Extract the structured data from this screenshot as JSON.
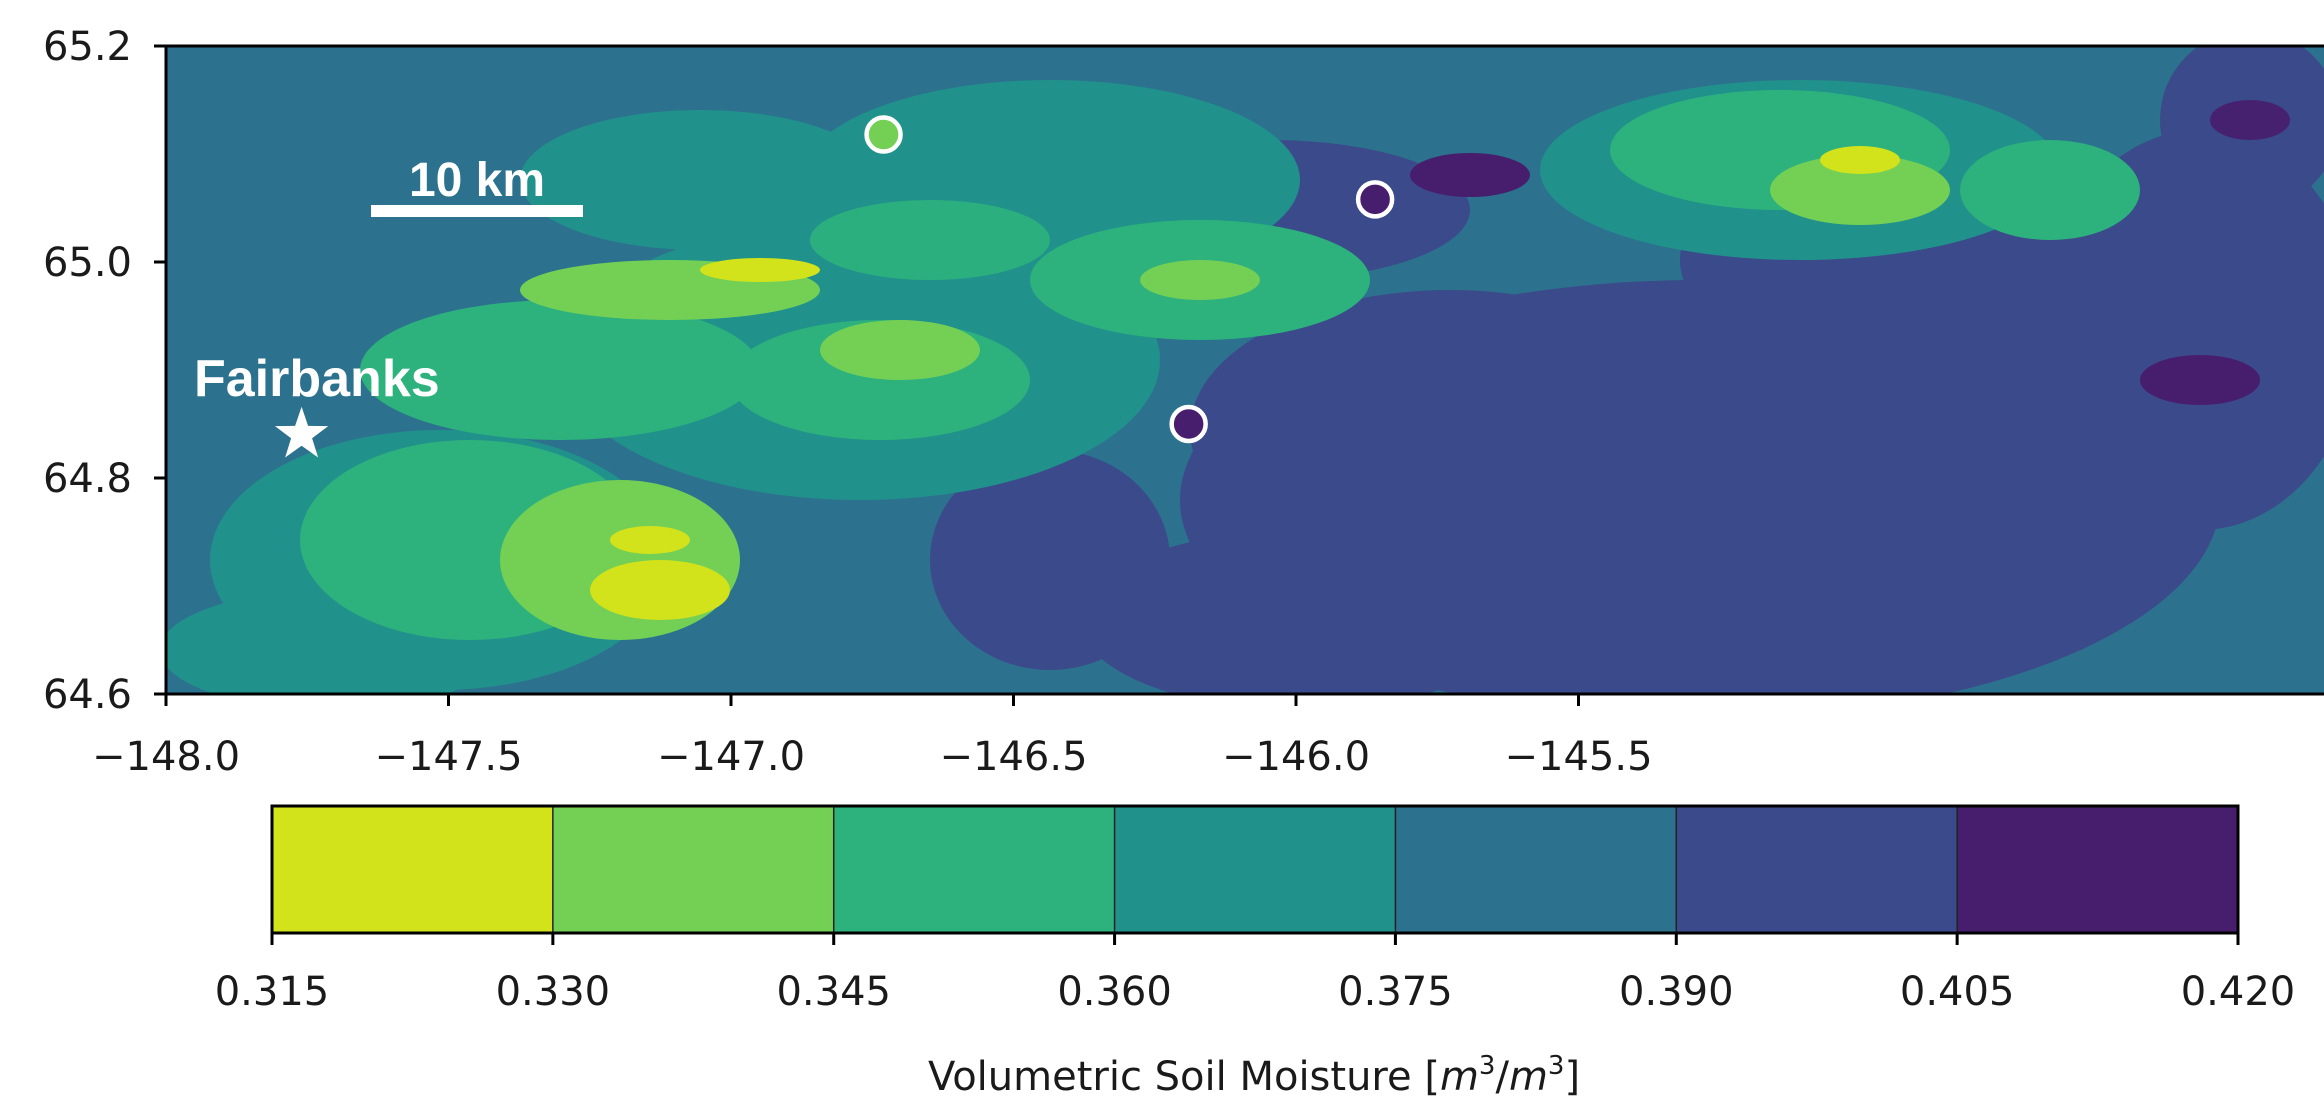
{
  "map": {
    "x_axis": {
      "range": [
        -148.0,
        -145.5
      ],
      "ticks": [
        "−148.0",
        "−147.5",
        "−147.0",
        "−146.5",
        "−146.0",
        "−145.5"
      ],
      "tick_values": [
        -148.0,
        -147.5,
        -147.0,
        -146.5,
        -146.0,
        -145.5
      ]
    },
    "y_axis": {
      "range": [
        64.6,
        65.2
      ],
      "ticks": [
        "65.2",
        "65.0",
        "64.8",
        "64.6"
      ],
      "tick_values": [
        65.2,
        65.0,
        64.8,
        64.6
      ]
    },
    "scale_bar": {
      "label": "10 km"
    },
    "city": {
      "label": "Fairbanks",
      "lon": -147.76,
      "lat": 64.84
    },
    "stations": [
      {
        "lon": -146.73,
        "lat": 65.118,
        "color": "#74d055"
      },
      {
        "lon": -145.86,
        "lat": 65.058,
        "color": "#471d6d"
      },
      {
        "lon": -146.19,
        "lat": 64.85,
        "color": "#471d6d"
      }
    ]
  },
  "colorbar": {
    "ticks": [
      "0.315",
      "0.330",
      "0.345",
      "0.360",
      "0.375",
      "0.390",
      "0.405",
      "0.420"
    ],
    "colors": [
      "#d2e21b",
      "#74d055",
      "#2db27d",
      "#21918c",
      "#2c728e",
      "#3b4a8a",
      "#471d6d"
    ],
    "label_prefix": "Volumetric Soil Moisture [",
    "label_unit_num": "m",
    "label_unit_den": "m",
    "label_exp": "3",
    "label_suffix": "]"
  }
}
